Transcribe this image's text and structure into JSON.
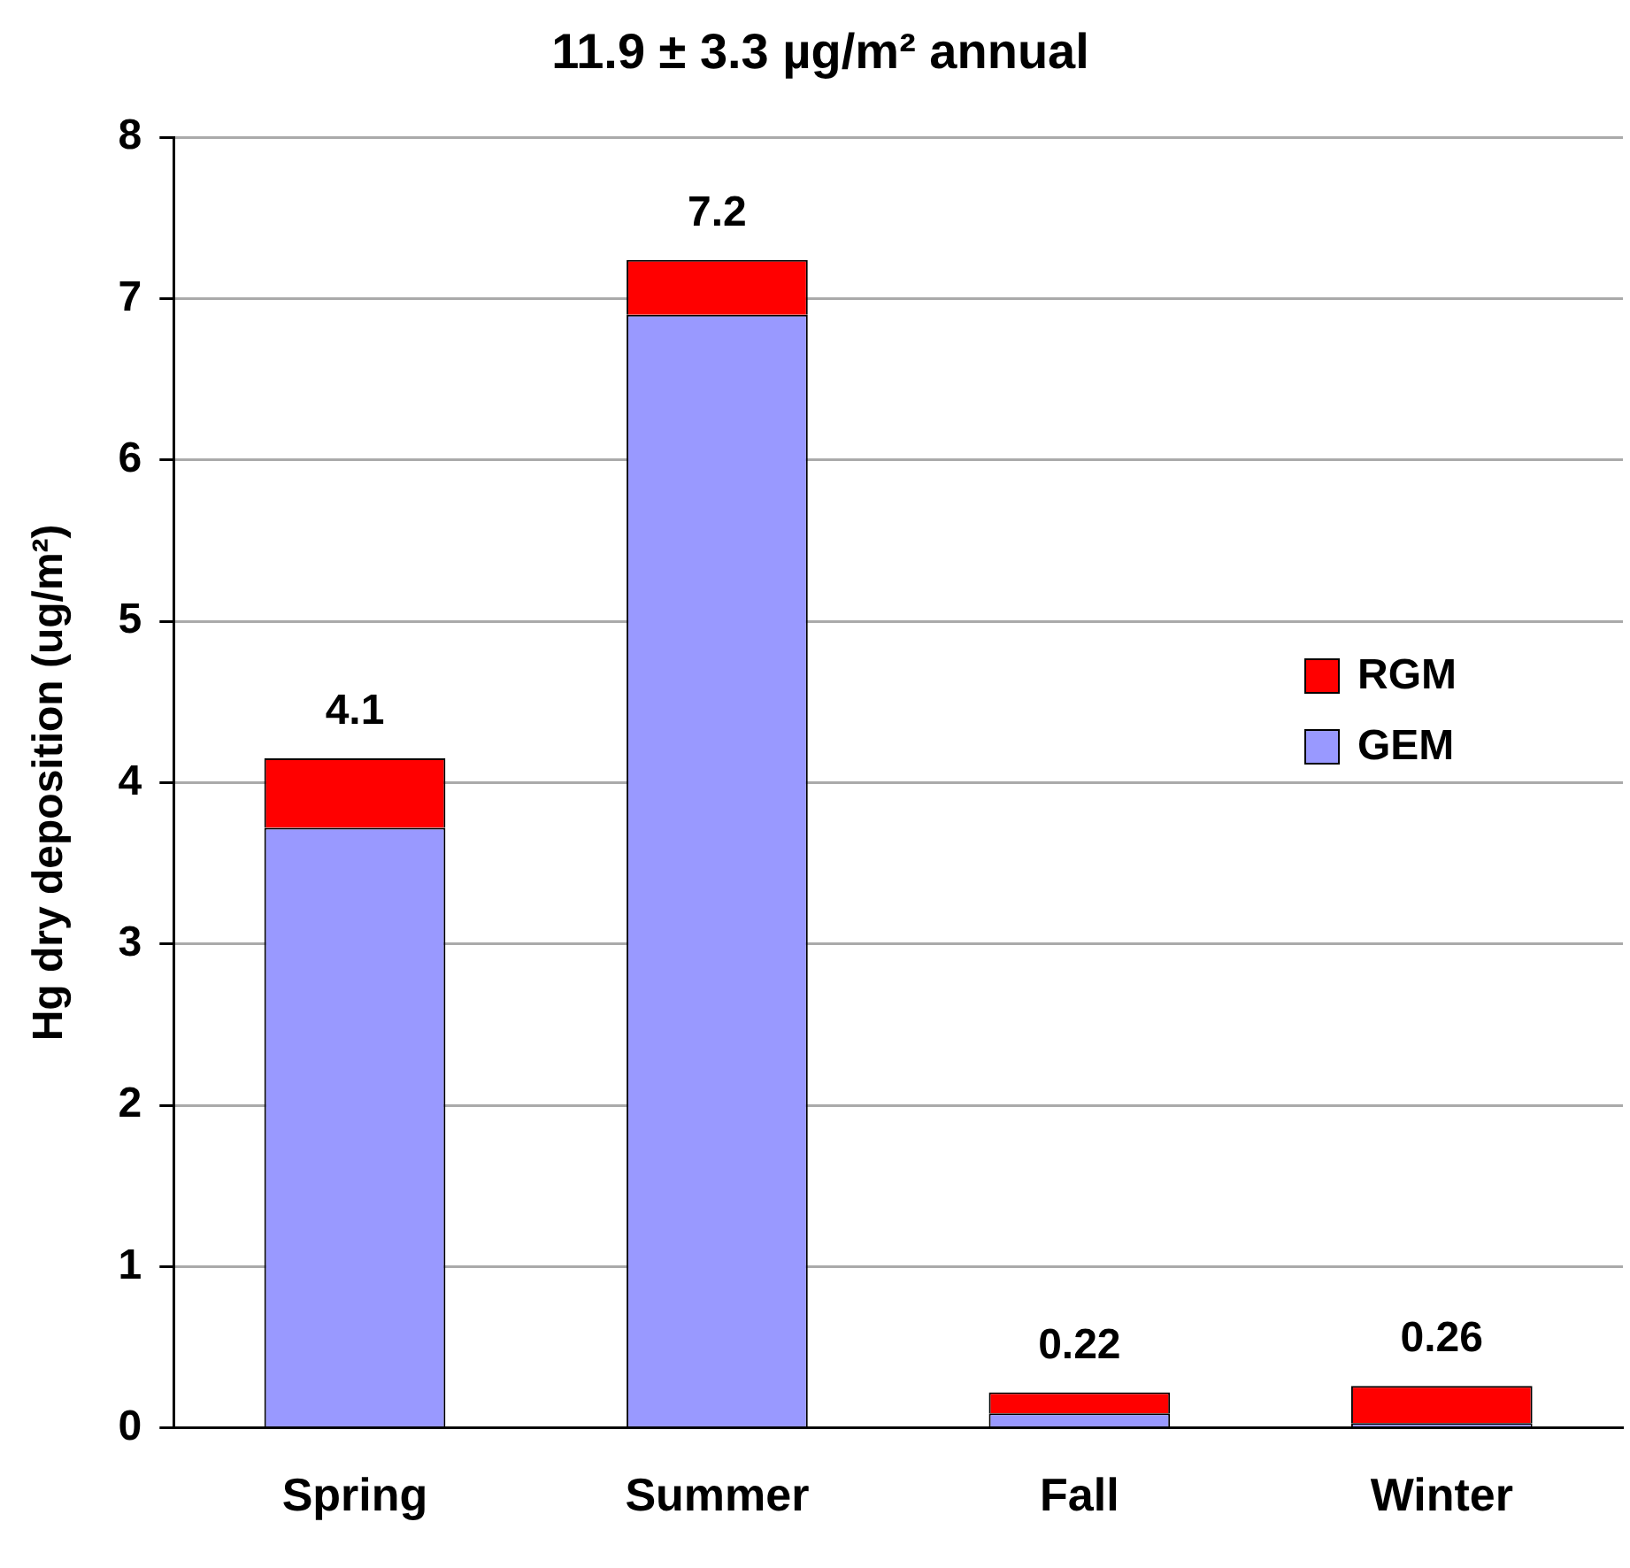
{
  "chart_data": {
    "type": "bar",
    "title": "11.9 ± 3.3 µg/m² annual",
    "ylabel": "Hg dry deposition (ug/m²)",
    "categories": [
      "Spring",
      "Summer",
      "Fall",
      "Winter"
    ],
    "stacked": true,
    "series": [
      {
        "name": "GEM",
        "color": "#9999ff",
        "values": [
          3.72,
          6.9,
          0.09,
          0.03
        ]
      },
      {
        "name": "RGM",
        "color": "#ff0000",
        "values": [
          0.43,
          0.34,
          0.13,
          0.23
        ]
      }
    ],
    "totals": [
      "4.1",
      "7.2",
      "0.22",
      "0.26"
    ],
    "ylim": [
      0,
      8
    ],
    "yticks": [
      0,
      1,
      2,
      3,
      4,
      5,
      6,
      7,
      8
    ],
    "grid": "y",
    "legend": "right"
  }
}
